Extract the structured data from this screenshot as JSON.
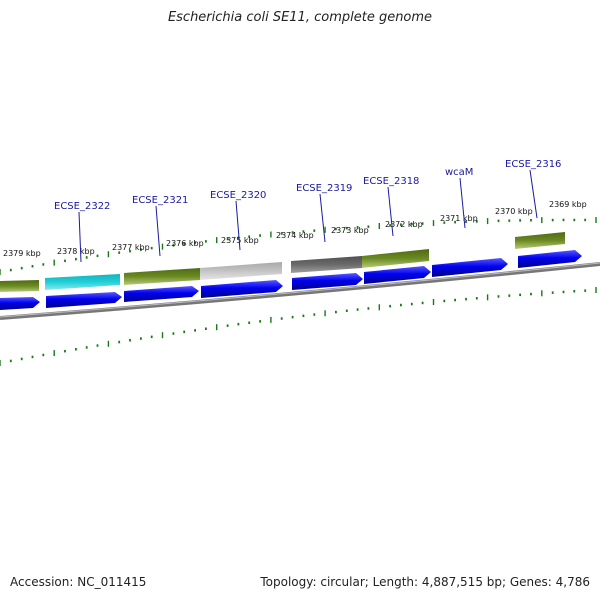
{
  "title": "Escherichia coli SE11, complete genome",
  "accession": "Accession: NC_011415",
  "summary": "Topology: circular; Length: 4,887,515 bp; Genes: 4,786",
  "colors": {
    "cds_blue": "#0000ee",
    "backbone": "#777777",
    "tick_green": "#1a7a1a",
    "olive": "#6b8a22",
    "cyan": "#1fc8d0",
    "light_gray": "#bdbdbd",
    "dark_gray": "#6a6a6a",
    "label_blue": "#1a1aa0"
  },
  "kbp_labels": [
    "2379 kbp",
    "2378 kbp",
    "2377 kbp",
    "2376 kbp",
    "2375 kbp",
    "2374 kbp",
    "2373 kbp",
    "2372 kbp",
    "2371 kbp",
    "2370 kbp",
    "2369 kbp"
  ],
  "gene_labels": [
    "ECSE_2322",
    "ECSE_2321",
    "ECSE_2320",
    "ECSE_2319",
    "ECSE_2318",
    "wcaM",
    "ECSE_2316"
  ]
}
